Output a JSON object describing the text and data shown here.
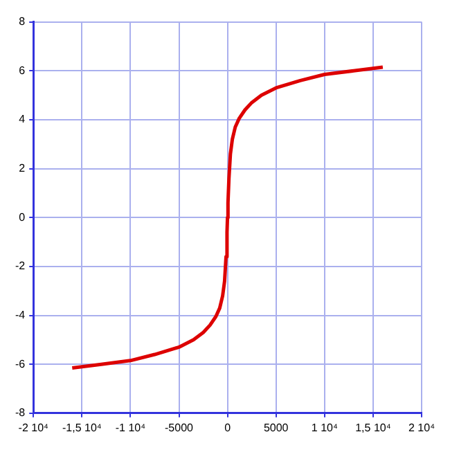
{
  "chart_data": {
    "type": "line",
    "x": [
      -16000,
      -13000,
      -10000,
      -7500,
      -5000,
      -3500,
      -2500,
      -1800,
      -1200,
      -800,
      -500,
      -300,
      -150,
      -50,
      0,
      50,
      150,
      300,
      500,
      800,
      1200,
      1800,
      2500,
      3500,
      5000,
      7500,
      10000,
      13000,
      16000
    ],
    "series": [
      {
        "color": "#dd0000",
        "values": [
          -6.15,
          -6.0,
          -5.85,
          -5.6,
          -5.3,
          -5.0,
          -4.7,
          -4.4,
          -4.05,
          -3.7,
          -3.2,
          -2.6,
          -1.6,
          -0.6,
          0,
          0.6,
          1.6,
          2.6,
          3.2,
          3.7,
          4.05,
          4.4,
          4.7,
          5.0,
          5.3,
          5.6,
          5.85,
          6.0,
          6.15
        ]
      }
    ],
    "xlim": [
      -20000,
      20000
    ],
    "xticks": [
      {
        "value": -20000,
        "label": "-2 10⁴"
      },
      {
        "value": -15000,
        "label": "-1,5 10⁴"
      },
      {
        "value": -10000,
        "label": "-1 10⁴"
      },
      -5000,
      0,
      5000,
      {
        "value": 10000,
        "label": "1 10⁴"
      },
      {
        "value": 15000,
        "label": "1,5 10⁴"
      },
      {
        "value": 20000,
        "label": "2 10⁴"
      }
    ],
    "ylim": [
      -8,
      8
    ],
    "yticks": [
      -8,
      -6,
      -4,
      -2,
      0,
      2,
      4,
      6,
      8
    ],
    "grid": true,
    "legend": false,
    "marker": "none",
    "line_style": "solid"
  }
}
